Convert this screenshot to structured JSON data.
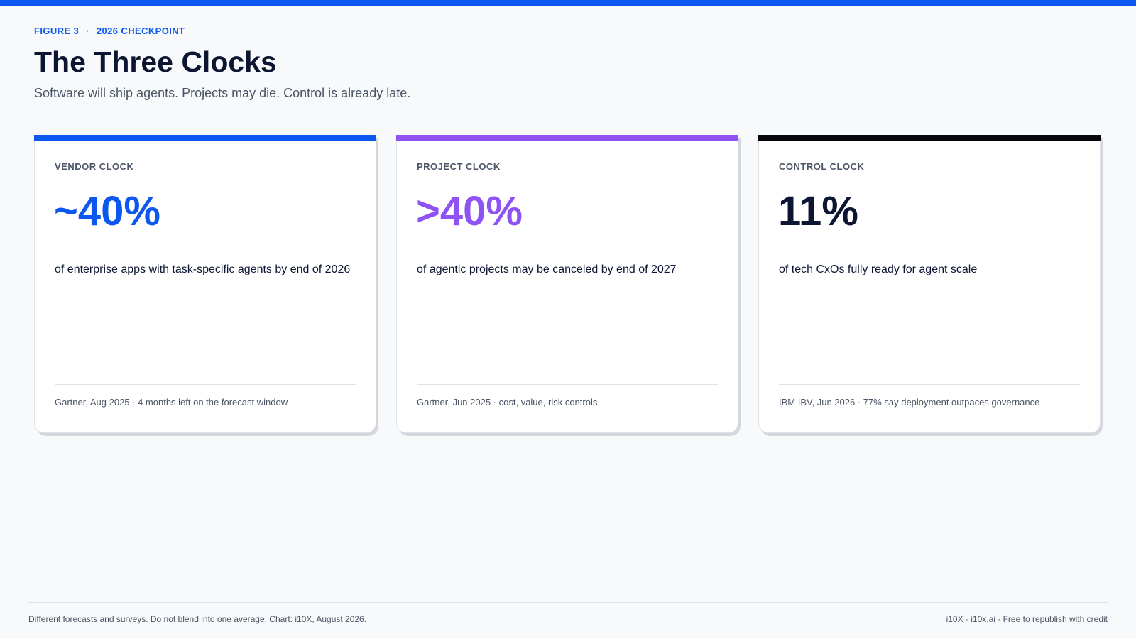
{
  "header": {
    "figure_label": "FIGURE 3",
    "separator": "·",
    "checkpoint_label": "2026 CHECKPOINT",
    "title": "The Three Clocks",
    "subtitle": "Software will ship agents. Projects may die. Control is already late."
  },
  "chart_data": {
    "type": "table",
    "title": "The Three Clocks",
    "subtitle": "Software will ship agents. Projects may die. Control is already late.",
    "cards": [
      {
        "label": "VENDOR CLOCK",
        "stat": "~40%",
        "value": 40,
        "description": "of enterprise apps with task-specific agents by end of 2026",
        "source": "Gartner, Aug 2025 · 4 months left on the forecast window",
        "color": "#0b57f0"
      },
      {
        "label": "PROJECT CLOCK",
        "stat": ">40%",
        "value": 40,
        "description": "of agentic projects may be canceled by end of 2027",
        "source": "Gartner, Jun 2025 · cost, value, risk controls",
        "color": "#8e52f5"
      },
      {
        "label": "CONTROL CLOCK",
        "stat": "11%",
        "value": 11,
        "description": "of tech CxOs fully ready for agent scale",
        "source": "IBM IBV, Jun 2026 · 77% say deployment outpaces governance",
        "color": "#0c1633"
      }
    ]
  },
  "card_accents": [
    "#0b57f0",
    "#8e52f5",
    "#05070d"
  ],
  "footer": {
    "note": "Different forecasts and surveys. Do not blend into one average. Chart: i10X, August 2026.",
    "credit": "i10X · i10x.ai · Free to republish with credit"
  }
}
